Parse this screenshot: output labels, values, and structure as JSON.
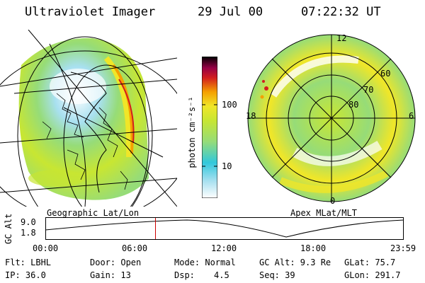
{
  "header": {
    "instrument": "Ultraviolet Imager",
    "date": "29 Jul 00",
    "time": "07:22:32 UT"
  },
  "left_panel": {
    "caption": "Geographic Lat/Lon",
    "projection": "geographic-globe",
    "border_color": "#000000"
  },
  "right_panel": {
    "caption": "Apex MLat/MLT",
    "mlt_labels": {
      "top": "12",
      "left": "18",
      "right": "6",
      "bottom": "0"
    },
    "lat_labels": [
      "60",
      "70",
      "80"
    ]
  },
  "colorbar": {
    "unit_label": "photon cm⁻²s⁻¹",
    "ticks": [
      {
        "label": "100",
        "value": 100
      },
      {
        "label": "10",
        "value": 10
      }
    ],
    "scale": "log",
    "colors": [
      "#ffffff",
      "#a8e0f0",
      "#32c8dc",
      "#96dc78",
      "#c8e632",
      "#f0e628",
      "#f5a000",
      "#d21e1e",
      "#960046",
      "#000000"
    ]
  },
  "altitude_plot": {
    "ylabel": "GC Alt",
    "y_ticks": [
      "9.0",
      "1.8"
    ],
    "x_ticks": [
      "00:00",
      "06:00",
      "12:00",
      "18:00",
      "23:59"
    ],
    "cursor_hour": 7.375,
    "cursor_color": "#cc0000"
  },
  "status": {
    "flt": "Flt: LBHL",
    "ip": "IP: 36.0",
    "door": "Door: Open",
    "gain": "Gain: 13",
    "mode": "Mode: Normal",
    "dsp_label": "Dsp:",
    "dsp_value": "4.5",
    "gc_alt": "GC Alt: 9.3 Re",
    "seq": "Seq: 39",
    "glat": "GLat: 75.7",
    "glon": "GLon: 291.7"
  }
}
